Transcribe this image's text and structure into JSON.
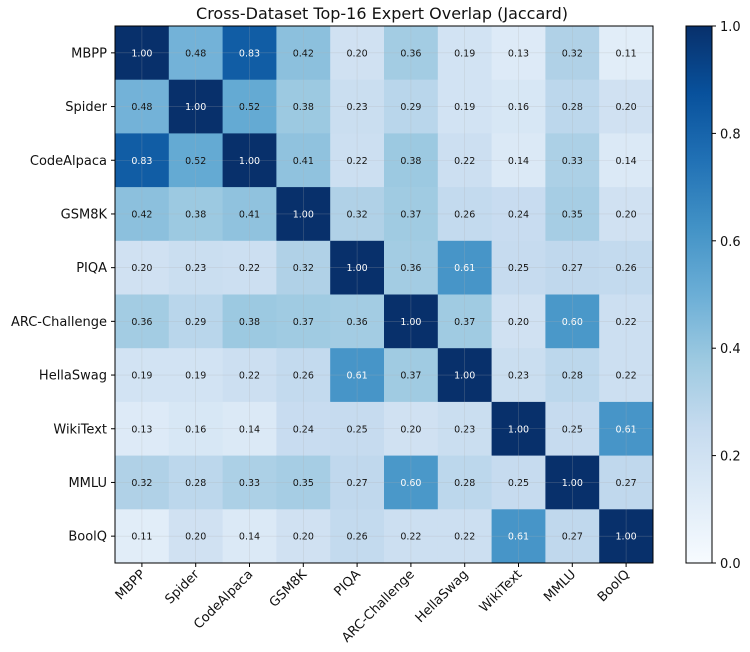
{
  "chart_data": {
    "type": "heatmap",
    "title": "Cross-Dataset Top-16 Expert Overlap (Jaccard)",
    "xlabel": "",
    "ylabel": "",
    "categories": [
      "MBPP",
      "Spider",
      "CodeAlpaca",
      "GSM8K",
      "PIQA",
      "ARC-Challenge",
      "HellaSwag",
      "WikiText",
      "MMLU",
      "BoolQ"
    ],
    "values": [
      [
        1.0,
        0.48,
        0.83,
        0.42,
        0.2,
        0.36,
        0.19,
        0.13,
        0.32,
        0.11
      ],
      [
        0.48,
        1.0,
        0.52,
        0.38,
        0.23,
        0.29,
        0.19,
        0.16,
        0.28,
        0.2
      ],
      [
        0.83,
        0.52,
        1.0,
        0.41,
        0.22,
        0.38,
        0.22,
        0.14,
        0.33,
        0.14
      ],
      [
        0.42,
        0.38,
        0.41,
        1.0,
        0.32,
        0.37,
        0.26,
        0.24,
        0.35,
        0.2
      ],
      [
        0.2,
        0.23,
        0.22,
        0.32,
        1.0,
        0.36,
        0.61,
        0.25,
        0.27,
        0.26
      ],
      [
        0.36,
        0.29,
        0.38,
        0.37,
        0.36,
        1.0,
        0.37,
        0.2,
        0.6,
        0.22
      ],
      [
        0.19,
        0.19,
        0.22,
        0.26,
        0.61,
        0.37,
        1.0,
        0.23,
        0.28,
        0.22
      ],
      [
        0.13,
        0.16,
        0.14,
        0.24,
        0.25,
        0.2,
        0.23,
        1.0,
        0.25,
        0.61
      ],
      [
        0.32,
        0.28,
        0.33,
        0.35,
        0.27,
        0.6,
        0.28,
        0.25,
        1.0,
        0.27
      ],
      [
        0.11,
        0.2,
        0.14,
        0.2,
        0.26,
        0.22,
        0.22,
        0.61,
        0.27,
        1.0
      ]
    ],
    "colorbar": {
      "range": [
        0.0,
        1.0
      ],
      "ticks": [
        "0.0",
        "0.2",
        "0.4",
        "0.6",
        "0.8",
        "1.0"
      ],
      "colormap": "Blues",
      "low_color": "#f7fbff",
      "high_color": "#08306b"
    },
    "grid": true
  }
}
